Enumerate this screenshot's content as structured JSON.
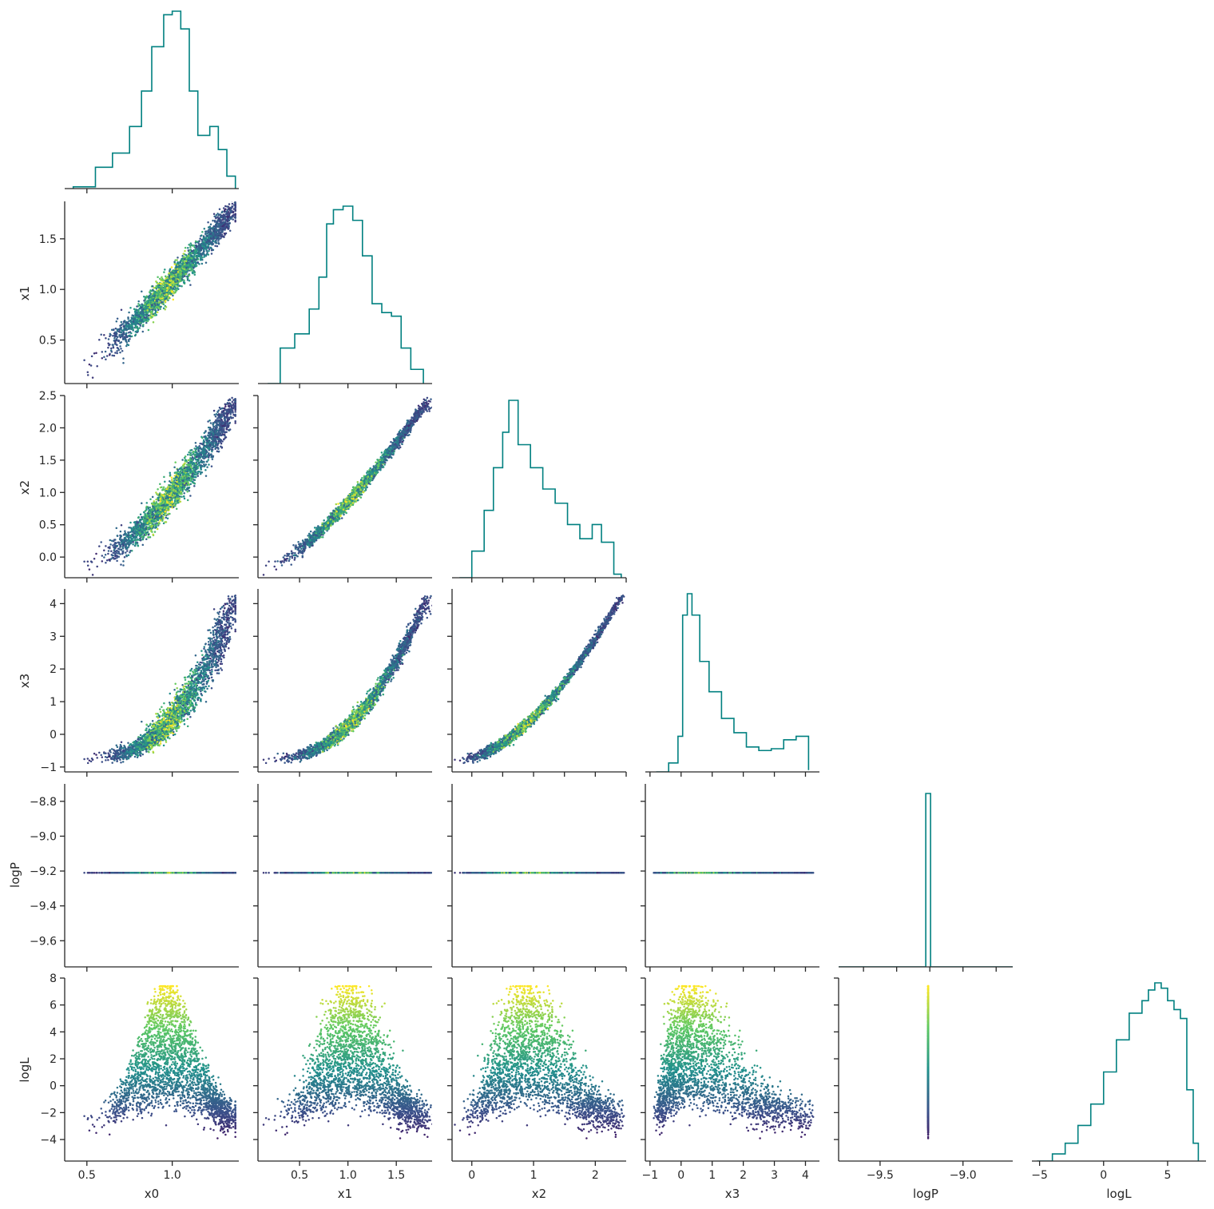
{
  "chart_data": {
    "type": "corner-plot",
    "title": "",
    "variables": [
      "x0",
      "x1",
      "x2",
      "x3",
      "logP",
      "logL"
    ],
    "ranges": {
      "x0": [
        0.37,
        1.39
      ],
      "x1": [
        0.07,
        1.87
      ],
      "x2": [
        -0.32,
        2.5
      ],
      "x3": [
        -1.15,
        4.45
      ],
      "logP": [
        -9.75,
        -8.7
      ],
      "logL": [
        -5.6,
        8.0
      ]
    },
    "ticks": {
      "x0": [
        0.5,
        1.0
      ],
      "x1": [
        0.5,
        1.0,
        1.5
      ],
      "x2": [
        0.0,
        0.5,
        1.0,
        1.5,
        2.0,
        2.5
      ],
      "x3": [
        -1,
        0,
        1,
        2,
        3,
        4
      ],
      "logP": [
        -8.8,
        -9.0,
        -9.2,
        -9.4,
        -9.6
      ],
      "logL": [
        -4,
        -2,
        0,
        2,
        4,
        6,
        8
      ]
    },
    "tick_labels": {
      "x0": [
        "0.5",
        "1.0"
      ],
      "x1": [
        "0.5",
        "1.0",
        "1.5"
      ],
      "x2": [
        "0.0",
        "0.5",
        "1.0",
        "1.5",
        "2.0",
        "2.5"
      ],
      "x2_bottom": [
        "0",
        "1",
        "2"
      ],
      "x3": [
        "−1",
        "0",
        "1",
        "2",
        "3",
        "4"
      ],
      "logP": [
        "−8.8",
        "−9.0",
        "−9.2",
        "−9.4",
        "−9.6"
      ],
      "logP_bottom": [
        "−9.5",
        "−9.0"
      ],
      "logL": [
        "−4",
        "−2",
        "0",
        "2",
        "4",
        "6",
        "8"
      ],
      "logL_bottom": [
        "−5",
        "0",
        "5"
      ]
    },
    "bottom_ticks": {
      "x2": [
        0,
        1,
        2
      ],
      "logP": [
        -9.5,
        -9.0
      ],
      "logL": [
        -5,
        0,
        5
      ]
    },
    "logP_constant": -9.21,
    "histograms": {
      "x0": {
        "x": [
          0.42,
          0.55,
          0.65,
          0.75,
          0.82,
          0.88,
          0.95,
          1.0,
          1.05,
          1.1,
          1.15,
          1.22,
          1.27,
          1.32,
          1.37
        ],
        "density": [
          0.01,
          0.12,
          0.2,
          0.35,
          0.55,
          0.8,
          0.98,
          1.0,
          0.9,
          0.55,
          0.3,
          0.35,
          0.22,
          0.07,
          0.0
        ]
      },
      "x1": {
        "x": [
          0.17,
          0.3,
          0.45,
          0.6,
          0.7,
          0.78,
          0.85,
          0.95,
          1.05,
          1.15,
          1.25,
          1.35,
          1.45,
          1.55,
          1.65,
          1.78
        ],
        "density": [
          0.0,
          0.2,
          0.28,
          0.42,
          0.6,
          0.9,
          0.98,
          1.0,
          0.92,
          0.72,
          0.45,
          0.4,
          0.38,
          0.2,
          0.08,
          0.0
        ]
      },
      "x2": {
        "x": [
          -0.2,
          0.0,
          0.2,
          0.35,
          0.5,
          0.6,
          0.75,
          0.95,
          1.15,
          1.35,
          1.55,
          1.75,
          1.95,
          2.1,
          2.3,
          2.42
        ],
        "density": [
          0.0,
          0.15,
          0.38,
          0.62,
          0.82,
          1.0,
          0.75,
          0.62,
          0.5,
          0.42,
          0.3,
          0.22,
          0.3,
          0.2,
          0.02,
          0.0
        ]
      },
      "x3": {
        "x": [
          -0.8,
          -0.4,
          -0.1,
          0.05,
          0.2,
          0.35,
          0.6,
          0.9,
          1.3,
          1.7,
          2.1,
          2.5,
          2.9,
          3.3,
          3.7,
          4.1
        ],
        "density": [
          0.0,
          0.05,
          0.2,
          0.88,
          1.0,
          0.88,
          0.62,
          0.45,
          0.3,
          0.22,
          0.14,
          0.12,
          0.13,
          0.18,
          0.2,
          0.01
        ]
      },
      "logP": {
        "x": [
          -9.21
        ],
        "density": [
          1.0
        ]
      },
      "logL": {
        "x": [
          -5.2,
          -4.0,
          -3.0,
          -2.0,
          -1.0,
          0.0,
          1.0,
          2.0,
          3.0,
          3.5,
          4.0,
          4.5,
          5.0,
          5.5,
          6.0,
          6.5,
          7.0,
          7.4
        ],
        "density": [
          0.0,
          0.04,
          0.1,
          0.2,
          0.32,
          0.5,
          0.68,
          0.83,
          0.9,
          0.96,
          1.0,
          0.97,
          0.9,
          0.85,
          0.8,
          0.4,
          0.1,
          0.0
        ]
      }
    },
    "colormap": "viridis",
    "color_variable": "logL",
    "hist_color": "#008080"
  }
}
